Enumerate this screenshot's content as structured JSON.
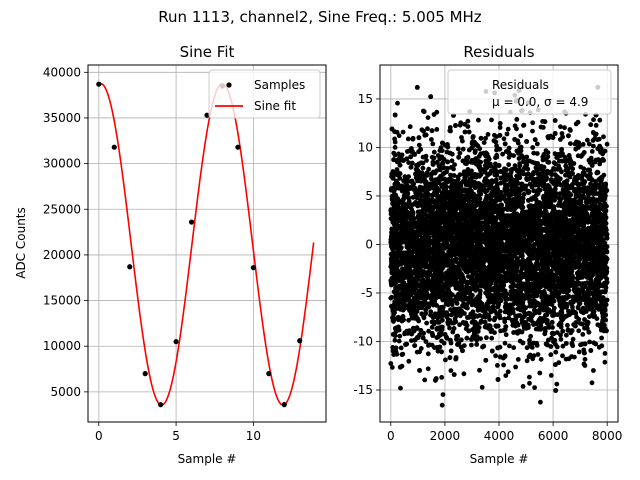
{
  "suptitle": "Run 1113, channel2, Sine Freq.: 5.005 MHz",
  "chart_data": [
    {
      "type": "line",
      "title": "Sine Fit",
      "xlabel": "Sample #",
      "ylabel": "ADC Counts",
      "xlim": [
        -0.7,
        14.7
      ],
      "ylim": [
        1700,
        40800
      ],
      "xticks": [
        0,
        5,
        10
      ],
      "yticks": [
        5000,
        10000,
        15000,
        20000,
        25000,
        30000,
        35000,
        40000
      ],
      "grid": true,
      "legend": {
        "placement": "top-right",
        "entries": [
          "Samples",
          "Sine fit"
        ]
      },
      "series": [
        {
          "name": "Samples",
          "kind": "scatter",
          "color": "#000000",
          "x": [
            0,
            1,
            2,
            3,
            4,
            5,
            6,
            7,
            8,
            9,
            10,
            11,
            12,
            13
          ],
          "y": [
            38700,
            31800,
            18700,
            7000,
            3600,
            10500,
            23600,
            35300,
            38500,
            31800,
            18600,
            7000,
            3600,
            10600
          ]
        },
        {
          "name": "Sine fit",
          "kind": "line",
          "color": "#ff0000",
          "model": {
            "offset": 21150,
            "amplitude": 17600,
            "period": 7.86,
            "phase_x": 0.13,
            "x_start": 0,
            "x_end": 13.9
          }
        }
      ]
    },
    {
      "type": "scatter",
      "title": "Residuals",
      "xlabel": "Sample #",
      "ylabel": "",
      "xlim": [
        -400,
        8400
      ],
      "ylim": [
        -18.3,
        18.5
      ],
      "xticks": [
        0,
        2000,
        4000,
        6000,
        8000
      ],
      "yticks": [
        -15,
        -10,
        -5,
        0,
        5,
        10,
        15
      ],
      "grid": true,
      "legend": {
        "placement": "top-right",
        "entries": [
          "Residuals",
          "μ = 0.0, σ = 4.9"
        ]
      },
      "series": [
        {
          "name": "Residuals",
          "color": "#000000",
          "distribution": {
            "x_range": [
              0,
              8000
            ],
            "mean": 0.0,
            "std": 4.9,
            "y_min": -17.5,
            "y_max": 16.7,
            "count": 8000
          }
        }
      ]
    }
  ]
}
